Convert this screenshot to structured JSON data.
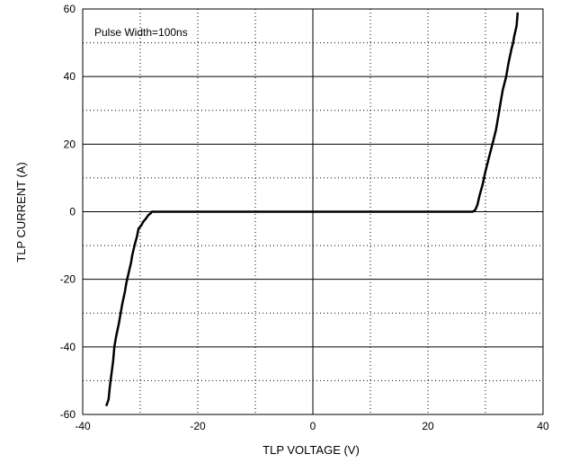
{
  "chart_data": {
    "type": "line",
    "title": "",
    "xlabel": "TLP VOLTAGE   (V)",
    "ylabel": "TLP CURRENT  (A)",
    "xlim": [
      -40,
      40
    ],
    "ylim": [
      -60,
      60
    ],
    "xticks": [
      -40,
      -20,
      0,
      20,
      40
    ],
    "yticks": [
      -60,
      -40,
      -20,
      0,
      20,
      40,
      60
    ],
    "xtick_labels": [
      "-40",
      "-20",
      "0",
      "20",
      "40"
    ],
    "ytick_labels": [
      "-60",
      "-40",
      "-20",
      "0",
      "20",
      "40",
      "60"
    ],
    "grid": {
      "major_solid": "y",
      "minor_dotted": "x and y"
    },
    "annotation": "Pulse Width=100ns",
    "series": [
      {
        "x": [
          -35.9,
          -35.5,
          -35.3,
          -35.0,
          -34.7,
          -34.5,
          -34.2,
          -33.7,
          -33.4,
          -33.1,
          -32.7,
          -32.4,
          -32.0,
          -31.6,
          -31.4,
          -31.0,
          -30.6,
          -30.3,
          -29.8,
          -29.5,
          -29.0,
          -28.6,
          -28.2,
          -28.0,
          -27.9,
          -20,
          -10,
          0,
          10,
          20,
          27.8,
          28.2,
          28.6,
          29.0,
          29.5,
          30.0,
          30.6,
          31.2,
          31.8,
          32.2,
          32.6,
          33.0,
          33.6,
          34.0,
          34.5,
          34.8,
          35.0,
          35.4,
          35.6
        ],
        "y": [
          -57.5,
          -55.5,
          -52,
          -48,
          -44,
          -40,
          -37,
          -33,
          -30,
          -27,
          -24,
          -21,
          -18,
          -15,
          -13,
          -10,
          -7.5,
          -5,
          -4,
          -3,
          -2,
          -1,
          -0.5,
          0,
          0,
          0,
          0,
          0,
          0,
          0,
          0,
          0.5,
          2,
          5,
          8,
          12,
          16,
          20,
          24,
          28,
          32,
          36,
          40,
          44,
          48,
          50,
          52,
          55,
          59
        ]
      }
    ]
  }
}
